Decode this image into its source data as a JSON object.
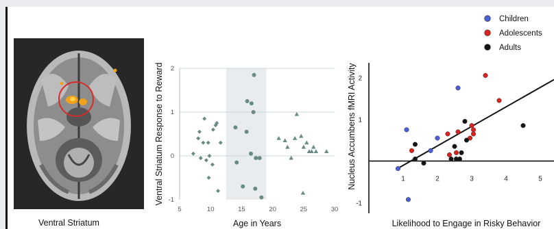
{
  "brain": {
    "caption": "Ventral Striatum",
    "colors": {
      "background": "#272727",
      "highlight_ring": "#d82a2a",
      "activation": "#f2a21a"
    }
  },
  "chart_data": [
    {
      "type": "scatter",
      "title": "",
      "xlabel": "Age in Years",
      "ylabel": "Ventral Striatum Response to Reward",
      "xlim": [
        5,
        30
      ],
      "ylim": [
        -1,
        2
      ],
      "xticks": [
        5,
        10,
        15,
        20,
        25,
        30
      ],
      "yticks": [
        -1,
        0,
        1,
        2
      ],
      "grid": "horizontal",
      "highlight_band": [
        12.5,
        19
      ],
      "colors": {
        "points": "#6a8b85",
        "band": "#e8ecef",
        "grid": "#c7d8d6"
      },
      "series": [
        {
          "marker": "diamond",
          "points": [
            [
              7.2,
              0.05
            ],
            [
              8.0,
              0.4
            ],
            [
              8.2,
              0.55
            ],
            [
              8.4,
              -0.05
            ],
            [
              8.8,
              0.3
            ],
            [
              9.0,
              0.85
            ],
            [
              9.3,
              -0.1
            ],
            [
              9.6,
              0.3
            ],
            [
              9.7,
              -0.5
            ],
            [
              9.8,
              0.0
            ],
            [
              10.3,
              -0.2
            ],
            [
              10.4,
              0.6
            ],
            [
              10.8,
              0.7
            ],
            [
              11.0,
              0.75
            ],
            [
              11.6,
              0.3
            ],
            [
              11.2,
              -0.8
            ]
          ]
        },
        {
          "marker": "circle",
          "points": [
            [
              14.0,
              0.65
            ],
            [
              14.2,
              -0.15
            ],
            [
              15.2,
              -0.7
            ],
            [
              15.8,
              0.55
            ],
            [
              15.9,
              1.25
            ],
            [
              16.5,
              0.05
            ],
            [
              16.6,
              1.2
            ],
            [
              16.9,
              1.0
            ],
            [
              17.0,
              1.85
            ],
            [
              17.2,
              -0.75
            ],
            [
              17.3,
              -0.05
            ],
            [
              17.9,
              -0.05
            ],
            [
              18.2,
              -0.95
            ]
          ]
        },
        {
          "marker": "triangle",
          "points": [
            [
              21.0,
              0.4
            ],
            [
              22.0,
              0.35
            ],
            [
              22.4,
              0.2
            ],
            [
              23.0,
              -0.05
            ],
            [
              23.6,
              0.4
            ],
            [
              23.9,
              0.95
            ],
            [
              24.6,
              0.45
            ],
            [
              24.9,
              -0.85
            ],
            [
              25.0,
              0.2
            ],
            [
              25.5,
              0.3
            ],
            [
              25.9,
              0.1
            ],
            [
              26.3,
              0.1
            ],
            [
              26.6,
              0.2
            ],
            [
              27.0,
              0.1
            ],
            [
              28.7,
              0.1
            ]
          ]
        }
      ]
    },
    {
      "type": "scatter",
      "title": "",
      "xlabel": "Likelihood to Engage in Risky Behavior",
      "ylabel": "Nucleus Accumbens fMRI Activity",
      "xlim": [
        0,
        5.4
      ],
      "ylim": [
        -1.25,
        2.35
      ],
      "xticks": [
        1,
        2,
        3,
        4,
        5
      ],
      "yticks": [
        -1,
        1,
        2
      ],
      "legend_position": "top-right",
      "trend_line": [
        [
          0.9,
          -0.15
        ],
        [
          5.4,
          1.95
        ]
      ],
      "series": [
        {
          "name": "Children",
          "color": "#4a5fd6",
          "points": [
            [
              0.85,
              -0.18
            ],
            [
              1.1,
              0.75
            ],
            [
              1.15,
              -0.92
            ],
            [
              1.8,
              0.25
            ],
            [
              2.0,
              0.55
            ],
            [
              2.6,
              1.75
            ]
          ]
        },
        {
          "name": "Adolescents",
          "color": "#d9231f",
          "points": [
            [
              1.25,
              0.25
            ],
            [
              2.3,
              0.65
            ],
            [
              2.35,
              0.15
            ],
            [
              2.55,
              0.2
            ],
            [
              2.6,
              0.7
            ],
            [
              2.95,
              0.55
            ],
            [
              3.0,
              0.85
            ],
            [
              3.05,
              0.65
            ],
            [
              3.05,
              0.75
            ],
            [
              3.4,
              2.05
            ],
            [
              3.8,
              1.45
            ]
          ]
        },
        {
          "name": "Adults",
          "color": "#141414",
          "points": [
            [
              1.35,
              0.4
            ],
            [
              1.35,
              0.05
            ],
            [
              1.6,
              -0.05
            ],
            [
              2.4,
              0.05
            ],
            [
              2.5,
              0.35
            ],
            [
              2.55,
              0.05
            ],
            [
              2.65,
              0.05
            ],
            [
              2.7,
              0.2
            ],
            [
              2.8,
              0.95
            ],
            [
              2.85,
              0.5
            ],
            [
              4.5,
              0.85
            ]
          ]
        }
      ]
    }
  ]
}
